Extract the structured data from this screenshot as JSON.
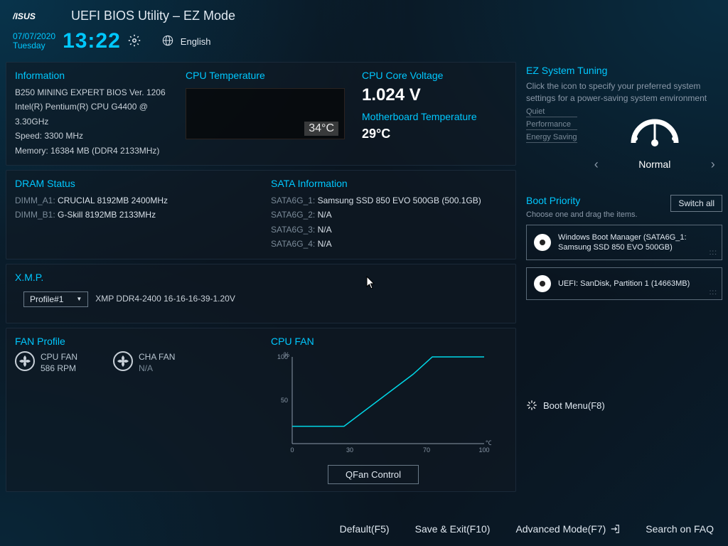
{
  "header": {
    "title": "UEFI BIOS Utility – EZ Mode",
    "date": "07/07/2020",
    "day": "Tuesday",
    "time": "13:22",
    "language": "English"
  },
  "information": {
    "heading": "Information",
    "board": "B250 MINING EXPERT   BIOS Ver. 1206",
    "cpu": "Intel(R) Pentium(R) CPU G4400 @ 3.30GHz",
    "speed": "Speed: 3300 MHz",
    "memory": "Memory: 16384 MB (DDR4 2133MHz)"
  },
  "cpu_temp": {
    "heading": "CPU Temperature",
    "value": "34°C",
    "box_bg": "#0a0806",
    "border_color": "#4a3d33"
  },
  "voltage": {
    "heading": "CPU Core Voltage",
    "value": "1.024 V",
    "mb_heading": "Motherboard Temperature",
    "mb_value": "29°C"
  },
  "dram": {
    "heading": "DRAM Status",
    "slots": [
      {
        "label": "DIMM_A1:",
        "value": "CRUCIAL 8192MB 2400MHz"
      },
      {
        "label": "DIMM_B1:",
        "value": "G-Skill 8192MB 2133MHz"
      }
    ]
  },
  "sata": {
    "heading": "SATA Information",
    "ports": [
      {
        "label": "SATA6G_1:",
        "value": "Samsung SSD 850 EVO 500GB (500.1GB)"
      },
      {
        "label": "SATA6G_2:",
        "value": "N/A"
      },
      {
        "label": "SATA6G_3:",
        "value": "N/A"
      },
      {
        "label": "SATA6G_4:",
        "value": "N/A"
      }
    ]
  },
  "xmp": {
    "heading": "X.M.P.",
    "selected": "Profile#1",
    "desc": "XMP DDR4-2400 16-16-16-39-1.20V"
  },
  "fan": {
    "heading": "FAN Profile",
    "fans": [
      {
        "name": "CPU FAN",
        "rpm": "586 RPM"
      },
      {
        "name": "CHA FAN",
        "rpm": "N/A"
      }
    ],
    "chart": {
      "heading": "CPU FAN",
      "type": "line",
      "y_label": "%",
      "x_label": "°C",
      "x_ticks": [
        0,
        30,
        70,
        100
      ],
      "y_ticks": [
        50,
        100
      ],
      "points": [
        [
          0,
          20
        ],
        [
          27,
          20
        ],
        [
          63,
          80
        ],
        [
          73,
          100
        ],
        [
          100,
          100
        ]
      ],
      "line_color": "#00d8e8",
      "axis_color": "#8a98a8",
      "font_size": 9
    },
    "qfan_button": "QFan Control"
  },
  "ez_tuning": {
    "heading": "EZ System Tuning",
    "desc": "Click the icon to specify your preferred system settings for a power-saving system environment",
    "modes": [
      "Quiet",
      "Performance",
      "Energy Saving"
    ],
    "current": "Normal"
  },
  "boot": {
    "heading": "Boot Priority",
    "desc": "Choose one and drag the items.",
    "switch_label": "Switch all",
    "items": [
      "Windows Boot Manager (SATA6G_1: Samsung SSD 850 EVO 500GB)",
      "UEFI: SanDisk, Partition 1 (14663MB)"
    ],
    "menu_label": "Boot Menu(F8)"
  },
  "footer": {
    "default": "Default(F5)",
    "save": "Save & Exit(F10)",
    "advanced": "Advanced Mode(F7)",
    "faq": "Search on FAQ"
  },
  "colors": {
    "accent": "#00c8ff",
    "text": "#c8d0d8",
    "dim": "#7a8a98",
    "bg_panel": "rgba(15,25,35,0.6)"
  }
}
